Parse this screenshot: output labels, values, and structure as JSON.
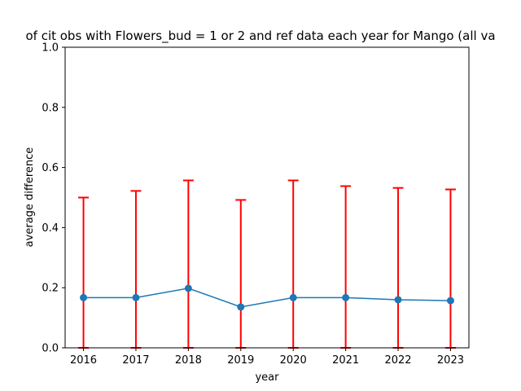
{
  "chart_data": {
    "type": "line",
    "title": "of cit obs with Flowers_bud = 1 or 2 and ref data each year for Mango (all va",
    "xlabel": "year",
    "ylabel": "average difference",
    "x": [
      2016,
      2017,
      2018,
      2019,
      2020,
      2021,
      2022,
      2023
    ],
    "x_tick_labels": [
      "2016",
      "2017",
      "2018",
      "2019",
      "2020",
      "2021",
      "2022",
      "2023"
    ],
    "xlim": [
      2015.65,
      2023.35
    ],
    "ylim": [
      0.0,
      1.0
    ],
    "y_ticks": [
      0.0,
      0.2,
      0.4,
      0.6,
      0.8,
      1.0
    ],
    "y_tick_labels": [
      "0.0",
      "0.2",
      "0.4",
      "0.6",
      "0.8",
      "1.0"
    ],
    "grid": false,
    "series": [
      {
        "values": [
          0.167,
          0.167,
          0.198,
          0.136,
          0.167,
          0.167,
          0.16,
          0.157
        ],
        "error_upper": [
          0.5,
          0.522,
          0.557,
          0.492,
          0.557,
          0.538,
          0.532,
          0.527
        ],
        "error_lower": [
          0.0,
          0.0,
          0.0,
          0.0,
          0.0,
          0.0,
          0.0,
          0.0
        ],
        "color": "#1f77b4",
        "error_color": "#ff0000"
      }
    ]
  }
}
